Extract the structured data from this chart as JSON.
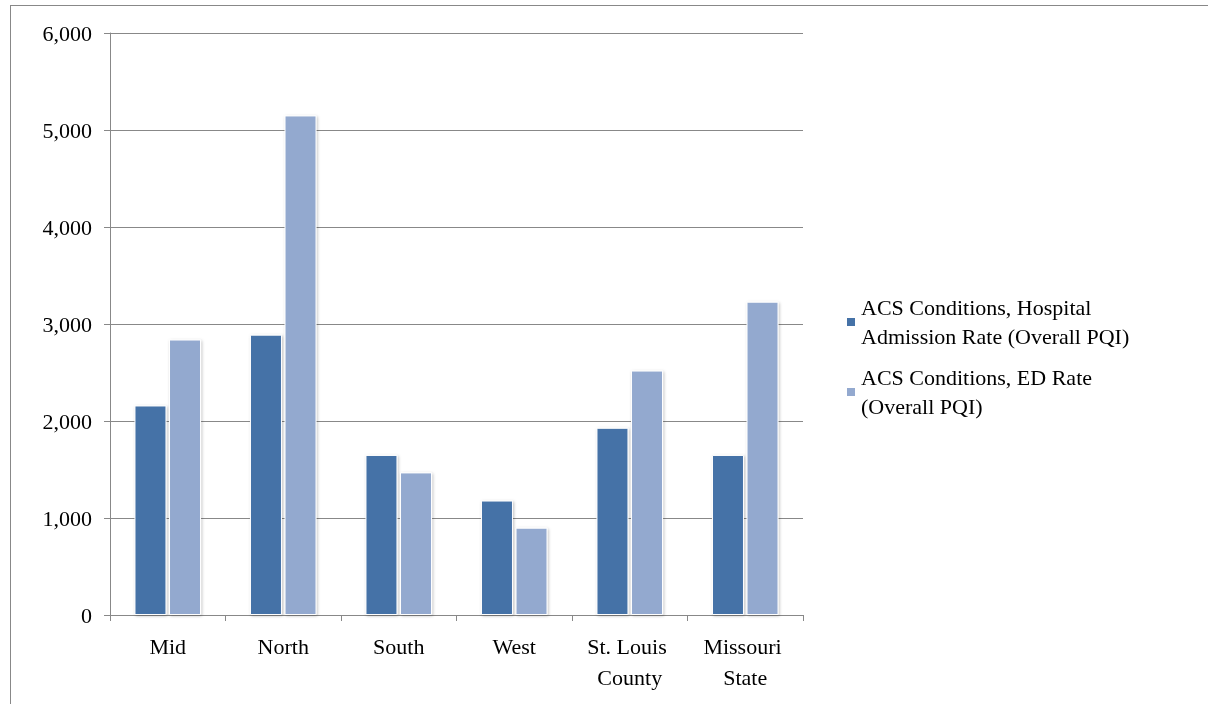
{
  "chart_data": {
    "type": "bar",
    "categories": [
      "Mid",
      "North",
      "South",
      "West",
      "St. Louis County",
      "Missouri State"
    ],
    "series": [
      {
        "name": "ACS Conditions, Hospital Admission Rate (Overall PQI)",
        "color": "#4572a7",
        "values": [
          2160,
          2890,
          1650,
          1180,
          1930,
          1650
        ]
      },
      {
        "name": "ACS Conditions, ED Rate (Overall PQI)",
        "color": "#93a9cf",
        "values": [
          2840,
          5150,
          1470,
          900,
          2520,
          3230
        ]
      }
    ],
    "ylim": [
      0,
      6000
    ],
    "yticks": [
      {
        "value": 0,
        "label": "0"
      },
      {
        "value": 1000,
        "label": "1,000"
      },
      {
        "value": 2000,
        "label": "2,000"
      },
      {
        "value": 3000,
        "label": "3,000"
      },
      {
        "value": 4000,
        "label": "4,000"
      },
      {
        "value": 5000,
        "label": "5,000"
      },
      {
        "value": 6000,
        "label": "6,000"
      }
    ],
    "grid": "y",
    "legend": "right"
  }
}
